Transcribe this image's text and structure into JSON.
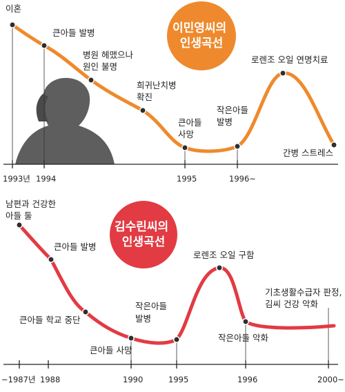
{
  "top_chart": {
    "title_lines": [
      "이민영씨의",
      "인생곡선"
    ],
    "accent_color": "#ee8a2d",
    "events": [
      "이혼",
      "큰아들 발병",
      "병원 헤맸으나\n원인 불명",
      "희귀난치병\n확진",
      "큰아들\n사망",
      "작은아들\n발병",
      "로렌조 오일 연명치료",
      "간병 스트레스"
    ],
    "years": [
      "1993년",
      "1994",
      "1995",
      "1996~"
    ]
  },
  "bottom_chart": {
    "title_lines": [
      "김수린씨의",
      "인생곡선"
    ],
    "accent_color": "#e23b43",
    "events": [
      "남편과 건강한\n아들 둘",
      "큰아들 발병",
      "큰아들 학교 중단",
      "큰아들 사망",
      "작은아들\n발병",
      "로렌조 오일 구함",
      "작은아들 악화",
      "기초생활수급자 판정,\n김씨 건강 악화"
    ],
    "years": [
      "~1987년",
      "1988",
      "1990",
      "1995",
      "1996",
      "2000~"
    ]
  }
}
